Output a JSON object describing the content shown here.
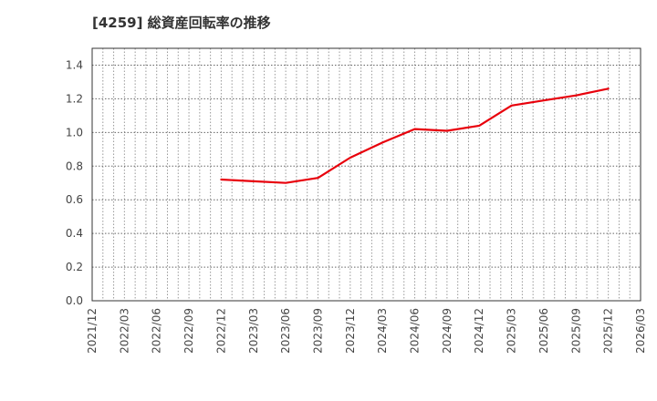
{
  "title": "[4259]  総資産回転率の推移",
  "colors": {
    "line": "#e8000b",
    "grid": "#999999",
    "axis": "#333333",
    "text": "#444444"
  },
  "chart_data": {
    "type": "line",
    "title": "[4259]  総資産回転率の推移",
    "xlabel": "",
    "ylabel": "",
    "ylim": [
      0,
      1.5
    ],
    "grid": true,
    "legend": null,
    "y_ticks": [
      "0.0",
      "0.2",
      "0.4",
      "0.6",
      "0.8",
      "1.0",
      "1.2",
      "1.4"
    ],
    "x_ticks": [
      "2021/12",
      "2022/03",
      "2022/06",
      "2022/09",
      "2022/12",
      "2023/03",
      "2023/06",
      "2023/09",
      "2023/12",
      "2024/03",
      "2024/06",
      "2024/09",
      "2024/12",
      "2025/03",
      "2025/06",
      "2025/09",
      "2025/12",
      "2026/03"
    ],
    "x_range": [
      "2021/12",
      "2026/03"
    ],
    "series": [
      {
        "name": "総資産回転率",
        "x": [
          "2022/12",
          "2023/03",
          "2023/06",
          "2023/09",
          "2023/12",
          "2024/03",
          "2024/06",
          "2024/09",
          "2024/12",
          "2025/03",
          "2025/06",
          "2025/09",
          "2025/12"
        ],
        "values": [
          0.72,
          0.71,
          0.7,
          0.73,
          0.85,
          0.94,
          1.02,
          1.01,
          1.04,
          1.16,
          1.19,
          1.22,
          1.26
        ]
      }
    ]
  }
}
